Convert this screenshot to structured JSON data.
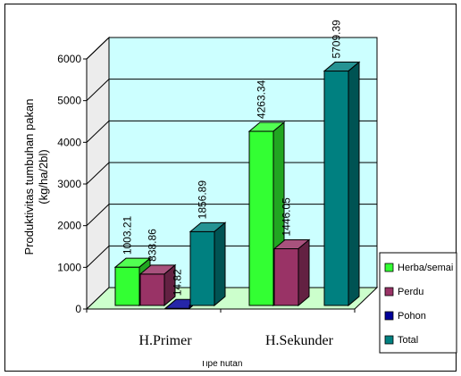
{
  "chart_data": {
    "type": "bar",
    "categories": [
      "H.Primer",
      "H.Sekunder"
    ],
    "series": [
      {
        "name": "Herba/semai",
        "values": [
          1003.21,
          4263.34
        ],
        "color": "#33ff33"
      },
      {
        "name": "Perdu",
        "values": [
          838.86,
          1446.05
        ],
        "color": "#993366"
      },
      {
        "name": "Pohon",
        "values": [
          14.82,
          0
        ],
        "color": "#000099"
      },
      {
        "name": "Total",
        "values": [
          1856.89,
          5709.39
        ],
        "color": "#008080"
      }
    ],
    "value_labels": [
      [
        "1003.21",
        "4263.34"
      ],
      [
        "838.86",
        "1446.05"
      ],
      [
        "14.82",
        null
      ],
      [
        "1856.89",
        "5709.39"
      ]
    ],
    "y_ticks": [
      "0",
      "1000",
      "2000",
      "3000",
      "4000",
      "5000",
      "6000"
    ],
    "ylim": [
      0,
      6000
    ],
    "ylabel": "Produktivitas tumbuhan pakan\n(kg/ha/2bl)",
    "xlabel": "Tipe hutan",
    "three_d": true,
    "wall_color": "#ccffff",
    "floor_color": "#ccffcc",
    "legend_position": "right"
  }
}
